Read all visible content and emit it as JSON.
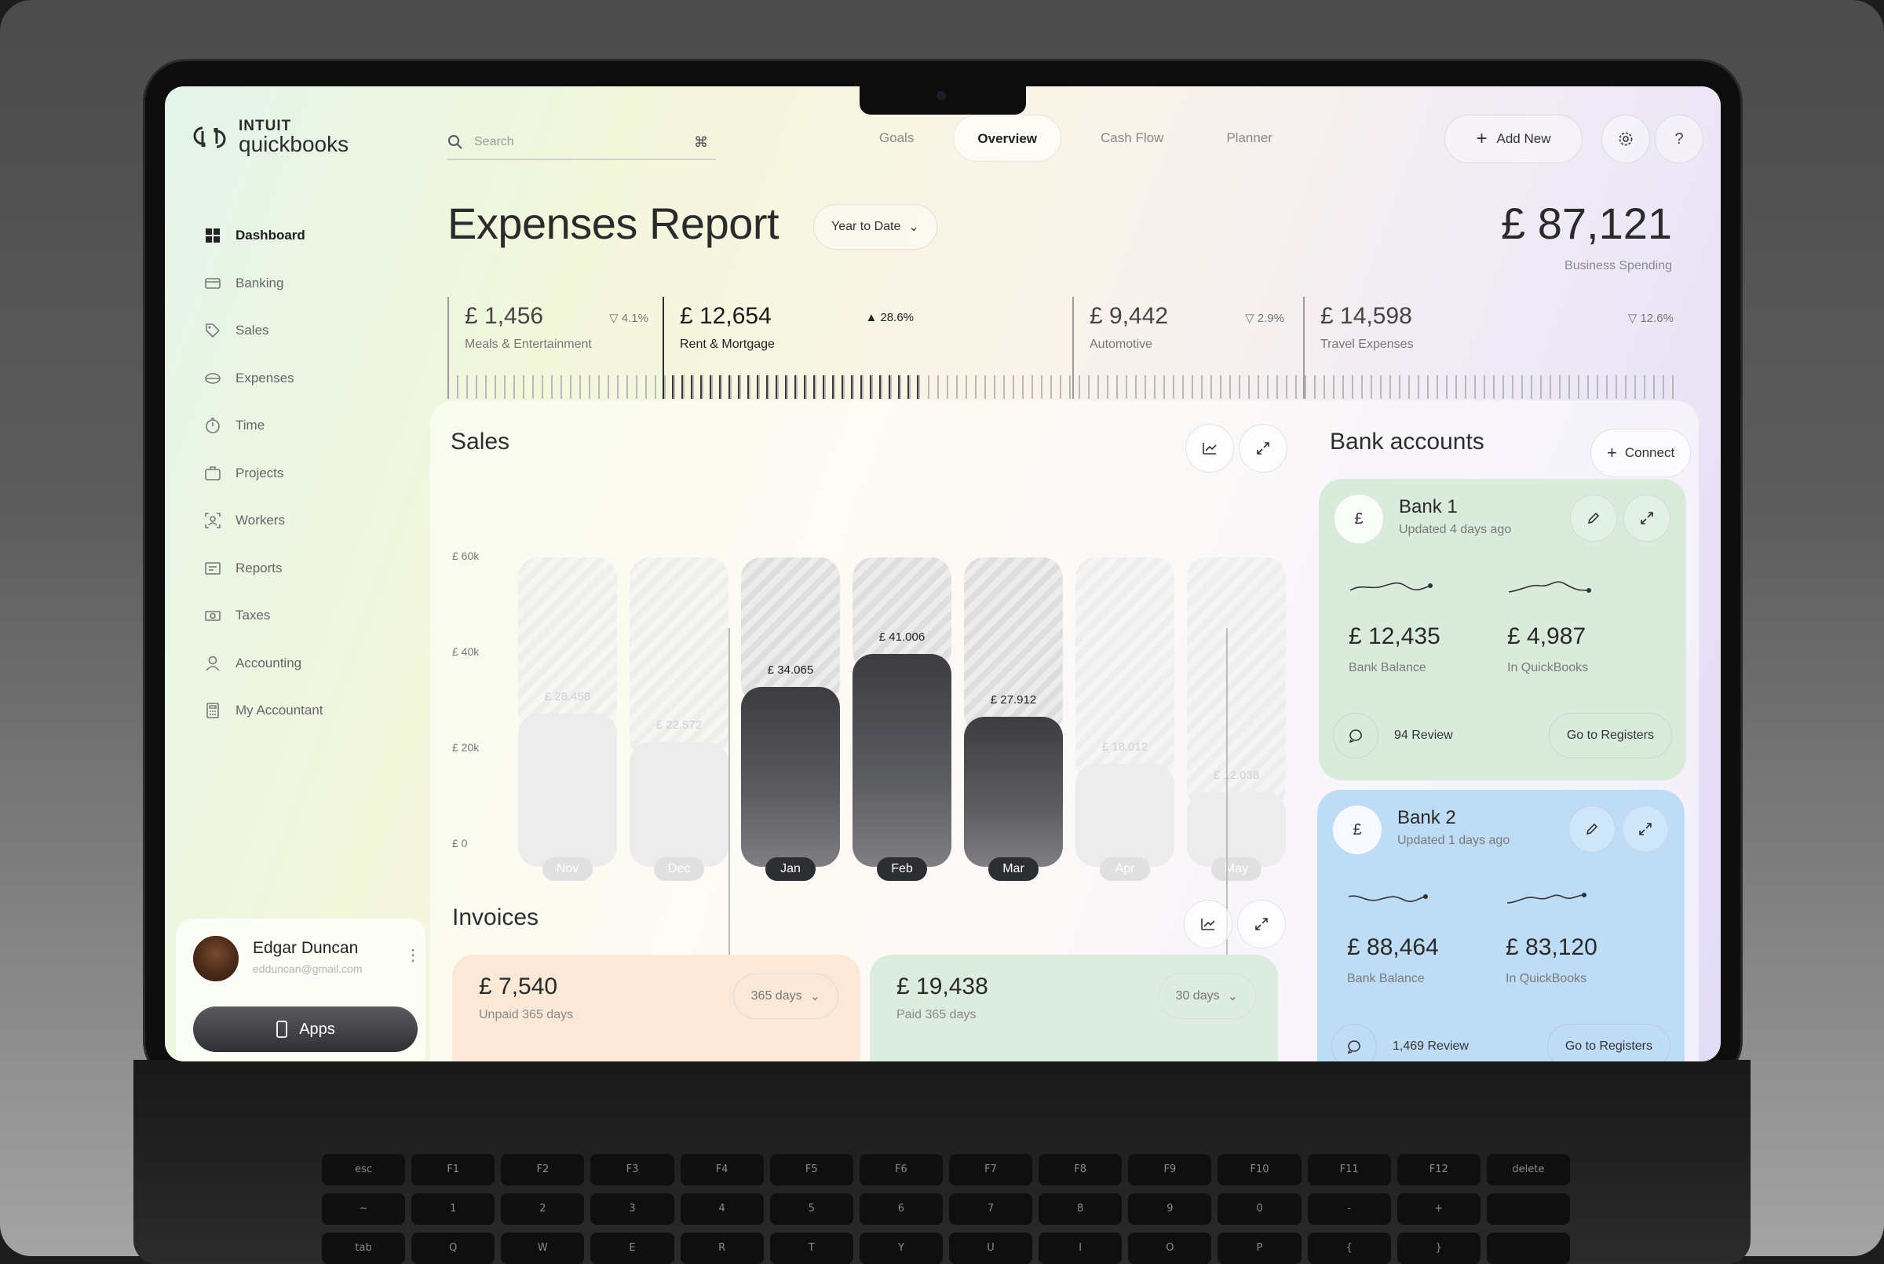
{
  "brand": {
    "line1": "INTUIT",
    "line2": "quickbooks"
  },
  "sidebar": {
    "items": [
      {
        "label": "Dashboard",
        "icon": "grid-icon",
        "active": true
      },
      {
        "label": "Banking",
        "icon": "card-icon"
      },
      {
        "label": "Sales",
        "icon": "tag-icon"
      },
      {
        "label": "Expenses",
        "icon": "wallet-icon"
      },
      {
        "label": "Time",
        "icon": "stopwatch-icon"
      },
      {
        "label": "Projects",
        "icon": "briefcase-icon"
      },
      {
        "label": "Workers",
        "icon": "person-scan-icon"
      },
      {
        "label": "Reports",
        "icon": "report-icon"
      },
      {
        "label": "Taxes",
        "icon": "money-icon"
      },
      {
        "label": "Accounting",
        "icon": "person-icon"
      },
      {
        "label": "My Accountant",
        "icon": "calculator-icon"
      }
    ],
    "user": {
      "name": "Edgar Duncan",
      "email": "edduncan@gmail.com"
    },
    "apps_label": "Apps"
  },
  "search": {
    "placeholder": "Search",
    "shortcut": "⌘"
  },
  "tabs": [
    {
      "label": "Goals"
    },
    {
      "label": "Overview",
      "active": true
    },
    {
      "label": "Cash Flow"
    },
    {
      "label": "Planner"
    }
  ],
  "actions": {
    "add_new": "Add New",
    "help": "?"
  },
  "header": {
    "title": "Expenses Report",
    "period": "Year to Date",
    "total": "£ 87,121",
    "total_label": "Business Spending"
  },
  "stats": [
    {
      "value": "£ 1,456",
      "label": "Meals & Entertainment",
      "change": "▽ 4.1%",
      "highlight": false
    },
    {
      "value": "£ 12,654",
      "label": "Rent & Mortgage",
      "change": "▲ 28.6%",
      "highlight": true
    },
    {
      "value": "£ 9,442",
      "label": "Automotive",
      "change": "▽ 2.9%",
      "highlight": false
    },
    {
      "value": "£ 14,598",
      "label": "Travel Expenses",
      "change": "▽ 12.6%",
      "highlight": false
    }
  ],
  "sales": {
    "title": "Sales",
    "y_ticks": [
      "£ 60k",
      "£ 40k",
      "£ 20k",
      "£ 0"
    ]
  },
  "chart_data": {
    "type": "bar",
    "categories": [
      "Nov",
      "Dec",
      "Jan",
      "Feb",
      "Mar",
      "Apr",
      "May"
    ],
    "values": [
      28458,
      22572,
      34065,
      41006,
      27912,
      18012,
      12038
    ],
    "labels": [
      "£ 28.458",
      "£ 22.572",
      "£ 34.065",
      "£ 41.006",
      "£ 27.912",
      "£ 18.012",
      "£ 12.038"
    ],
    "highlighted": [
      "Jan",
      "Feb",
      "Mar"
    ],
    "ylim": [
      0,
      60000
    ],
    "title": "Sales"
  },
  "invoices": {
    "title": "Invoices",
    "cards": [
      {
        "value": "£ 7,540",
        "label": "Unpaid 365 days",
        "range": "365 days",
        "color": "#fbe8d7"
      },
      {
        "value": "£ 19,438",
        "label": "Paid 365 days",
        "range": "30 days",
        "color": "#dcecdf"
      }
    ]
  },
  "bank_accounts": {
    "title": "Bank accounts",
    "connect": "Connect",
    "banks": [
      {
        "currency": "£",
        "name": "Bank 1",
        "updated": "Updated 4 days ago",
        "balance": "£ 12,435",
        "balance_label": "Bank Balance",
        "qb": "£ 4,987",
        "qb_label": "In QuickBooks",
        "review": "94 Review",
        "go": "Go to Registers",
        "color": "#d9ecdc"
      },
      {
        "currency": "£",
        "name": "Bank 2",
        "updated": "Updated 1 days ago",
        "balance": "£ 88,464",
        "balance_label": "Bank Balance",
        "qb": "£ 83,120",
        "qb_label": "In QuickBooks",
        "review": "1,469 Review",
        "go": "Go to Registers",
        "color": "#bfdcf7"
      }
    ]
  },
  "keyboard": {
    "row1": [
      "esc",
      "F1",
      "F2",
      "F3",
      "F4",
      "F5",
      "F6",
      "F7",
      "F8",
      "F9",
      "F10",
      "F11",
      "F12",
      "delete"
    ],
    "row2": [
      "~",
      "1",
      "2",
      "3",
      "4",
      "5",
      "6",
      "7",
      "8",
      "9",
      "0",
      "-",
      "+",
      ""
    ],
    "row3": [
      "tab",
      "Q",
      "W",
      "E",
      "R",
      "T",
      "Y",
      "U",
      "I",
      "O",
      "P",
      "{",
      "}",
      ""
    ]
  }
}
